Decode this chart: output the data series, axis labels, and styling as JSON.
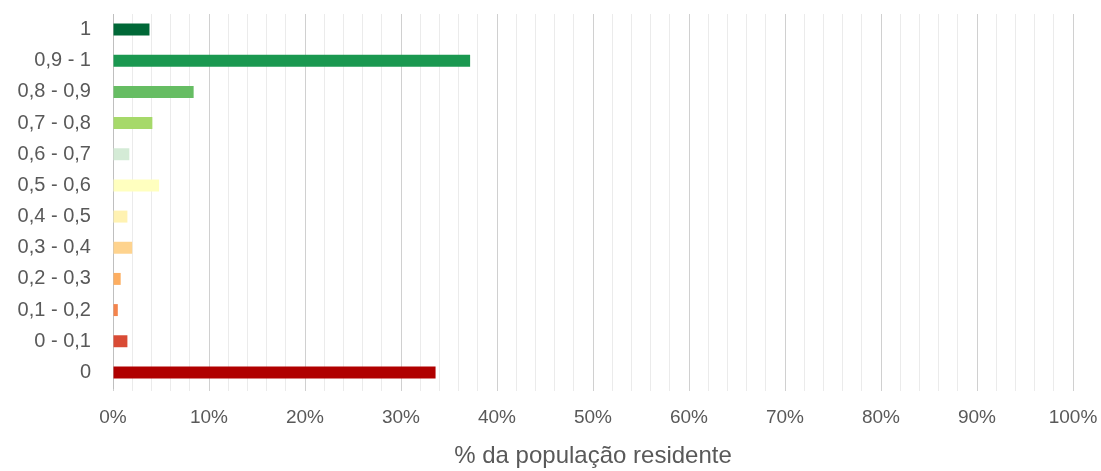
{
  "chart_data": {
    "type": "bar",
    "orientation": "horizontal",
    "categories": [
      "1",
      "0,9 - 1",
      "0,8 - 0,9",
      "0,7 - 0,8",
      "0,6 - 0,7",
      "0,5 - 0,6",
      "0,4 - 0,5",
      "0,3 - 0,4",
      "0,2 - 0,3",
      "0,1 - 0,2",
      "0 - 0,1",
      "0"
    ],
    "values": [
      3.8,
      37.2,
      8.4,
      4.1,
      1.7,
      4.8,
      1.5,
      2.0,
      0.8,
      0.5,
      1.5,
      33.6
    ],
    "colors": [
      "#006837",
      "#1a9850",
      "#66bd63",
      "#a6d96a",
      "#d4ebd6",
      "#ffffbf",
      "#fff2b2",
      "#fed38e",
      "#fdae61",
      "#f4844c",
      "#d94b35",
      "#b00000"
    ],
    "xlabel": "% da população residente",
    "xlim": [
      0,
      100
    ],
    "xticks": [
      {
        "value": 0,
        "label": "0%"
      },
      {
        "value": 2,
        "label": null
      },
      {
        "value": 4,
        "label": null
      },
      {
        "value": 6,
        "label": null
      },
      {
        "value": 8,
        "label": null
      },
      {
        "value": 10,
        "label": "10%"
      },
      {
        "value": 12,
        "label": null
      },
      {
        "value": 14,
        "label": null
      },
      {
        "value": 16,
        "label": null
      },
      {
        "value": 18,
        "label": null
      },
      {
        "value": 20,
        "label": "20%"
      },
      {
        "value": 22,
        "label": null
      },
      {
        "value": 24,
        "label": null
      },
      {
        "value": 26,
        "label": null
      },
      {
        "value": 28,
        "label": null
      },
      {
        "value": 30,
        "label": "30%"
      },
      {
        "value": 32,
        "label": null
      },
      {
        "value": 34,
        "label": null
      },
      {
        "value": 36,
        "label": null
      },
      {
        "value": 38,
        "label": null
      },
      {
        "value": 40,
        "label": "40%"
      },
      {
        "value": 42,
        "label": null
      },
      {
        "value": 44,
        "label": null
      },
      {
        "value": 46,
        "label": null
      },
      {
        "value": 48,
        "label": null
      },
      {
        "value": 50,
        "label": "50%"
      },
      {
        "value": 52,
        "label": null
      },
      {
        "value": 54,
        "label": null
      },
      {
        "value": 56,
        "label": null
      },
      {
        "value": 58,
        "label": null
      },
      {
        "value": 60,
        "label": "60%"
      },
      {
        "value": 62,
        "label": null
      },
      {
        "value": 64,
        "label": null
      },
      {
        "value": 66,
        "label": null
      },
      {
        "value": 68,
        "label": null
      },
      {
        "value": 70,
        "label": "70%"
      },
      {
        "value": 72,
        "label": null
      },
      {
        "value": 74,
        "label": null
      },
      {
        "value": 76,
        "label": null
      },
      {
        "value": 78,
        "label": null
      },
      {
        "value": 80,
        "label": "80%"
      },
      {
        "value": 82,
        "label": null
      },
      {
        "value": 84,
        "label": null
      },
      {
        "value": 86,
        "label": null
      },
      {
        "value": 88,
        "label": null
      },
      {
        "value": 90,
        "label": "90%"
      },
      {
        "value": 92,
        "label": null
      },
      {
        "value": 94,
        "label": null
      },
      {
        "value": 96,
        "label": null
      },
      {
        "value": 98,
        "label": null
      },
      {
        "value": 100,
        "label": "100%"
      }
    ],
    "grid": "x"
  }
}
